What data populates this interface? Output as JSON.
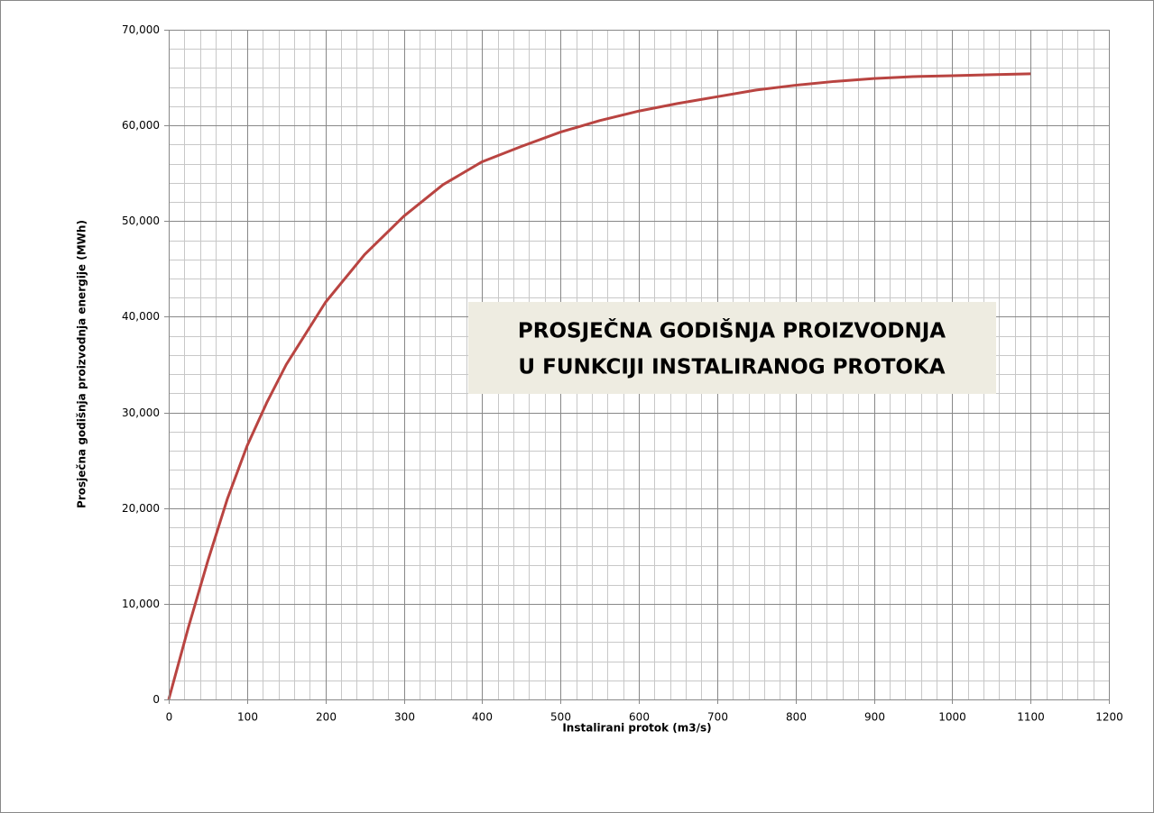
{
  "chart_data": {
    "type": "line",
    "x_label": "Instalirani protok (m3/s)",
    "y_label": "Prosječna godišnja proizvodnja energije (MWh)",
    "annotation": [
      "PROSJEČNA GODIŠNJA PROIZVODNJA",
      "U FUNKCIJI INSTALIRANOG PROTOKA"
    ],
    "x": [
      0,
      25,
      50,
      75,
      100,
      125,
      150,
      200,
      250,
      300,
      350,
      400,
      450,
      500,
      550,
      600,
      650,
      700,
      750,
      800,
      850,
      900,
      950,
      1000,
      1050,
      1100
    ],
    "series": [
      {
        "color": "#b94441",
        "values": [
          0,
          7500,
          14500,
          21000,
          26500,
          31000,
          35000,
          41500,
          46500,
          50500,
          53800,
          56200,
          57800,
          59300,
          60500,
          61500,
          62300,
          63000,
          63700,
          64200,
          64600,
          64900,
          65100,
          65200,
          65300,
          65400
        ]
      }
    ],
    "xlim": [
      0,
      1200
    ],
    "xticks": [
      0,
      100,
      200,
      300,
      400,
      500,
      600,
      700,
      800,
      900,
      1000,
      1100,
      1200
    ],
    "ylim": [
      0,
      70000
    ],
    "yticks": [
      0,
      {
        "value": 10000,
        "label": "10,000"
      },
      {
        "value": 20000,
        "label": "20,000"
      },
      {
        "value": 30000,
        "label": "30,000"
      },
      {
        "value": 40000,
        "label": "40,000"
      },
      {
        "value": 50000,
        "label": "50,000"
      },
      {
        "value": 60000,
        "label": "60,000"
      },
      {
        "value": 70000,
        "label": "70,000"
      }
    ],
    "grid": true,
    "minor_grid": {
      "x": 20,
      "y": 2000
    }
  }
}
